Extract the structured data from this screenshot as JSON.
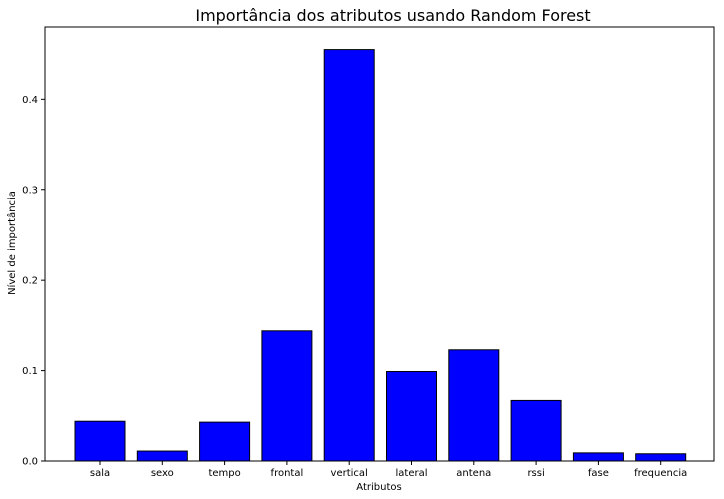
{
  "chart_data": {
    "type": "bar",
    "title": "Importância dos atributos usando Random Forest",
    "xlabel": "Atributos",
    "ylabel": "Nível de importância",
    "categories": [
      "sala",
      "sexo",
      "tempo",
      "frontal",
      "vertical",
      "lateral",
      "antena",
      "rssi",
      "fase",
      "frequencia"
    ],
    "values": [
      0.044,
      0.011,
      0.043,
      0.144,
      0.455,
      0.099,
      0.123,
      0.067,
      0.009,
      0.008
    ],
    "ylim": [
      0,
      0.48
    ],
    "yticks": [
      0.0,
      0.1,
      0.2,
      0.3,
      0.4
    ],
    "ytick_labels": [
      "0.0",
      "0.1",
      "0.2",
      "0.3",
      "0.4"
    ],
    "grid": false,
    "bar_color": "#0000ff",
    "edge_color": "#000000"
  }
}
